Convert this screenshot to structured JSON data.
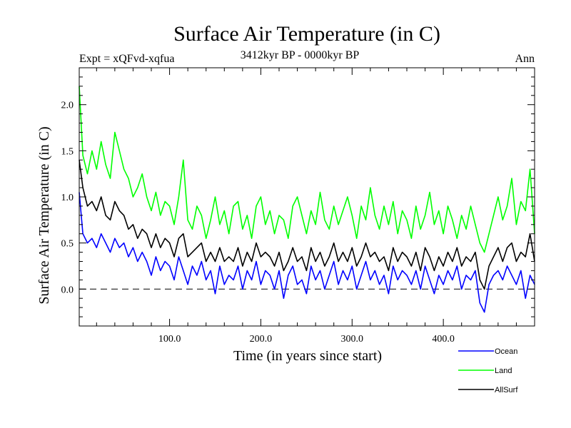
{
  "chart_data": {
    "type": "line",
    "title": "Surface Air Temperature (in C)",
    "subtitle": "3412kyr BP - 0000kyr BP",
    "experiment_label": "Expt = xQFvd-xqfua",
    "season_label": "Ann",
    "xlabel": "Time (in years since start)",
    "ylabel": "Surface Air Temperature (in C)",
    "xlim": [
      1,
      500
    ],
    "ylim": [
      -0.4,
      2.4
    ],
    "x_ticks": [
      100,
      200,
      300,
      400
    ],
    "x_tick_labels": [
      "100.0",
      "200.0",
      "300.0",
      "400.0"
    ],
    "y_ticks": [
      0.0,
      0.5,
      1.0,
      1.5,
      2.0
    ],
    "y_tick_labels": [
      "0.0",
      "0.5",
      "1.0",
      "1.5",
      "2.0"
    ],
    "zero_line": true,
    "grid": false,
    "legend_position": "bottom-right",
    "x": [
      1,
      5,
      10,
      15,
      20,
      25,
      30,
      35,
      40,
      45,
      50,
      55,
      60,
      65,
      70,
      75,
      80,
      85,
      90,
      95,
      100,
      105,
      110,
      115,
      120,
      125,
      130,
      135,
      140,
      145,
      150,
      155,
      160,
      165,
      170,
      175,
      180,
      185,
      190,
      195,
      200,
      205,
      210,
      215,
      220,
      225,
      230,
      235,
      240,
      245,
      250,
      255,
      260,
      265,
      270,
      275,
      280,
      285,
      290,
      295,
      300,
      305,
      310,
      315,
      320,
      325,
      330,
      335,
      340,
      345,
      350,
      355,
      360,
      365,
      370,
      375,
      380,
      385,
      390,
      395,
      400,
      405,
      410,
      415,
      420,
      425,
      430,
      435,
      440,
      445,
      450,
      455,
      460,
      465,
      470,
      475,
      480,
      485,
      490,
      495,
      500
    ],
    "series": [
      {
        "name": "Ocean",
        "color": "#0000ff",
        "values": [
          1.05,
          0.6,
          0.5,
          0.55,
          0.45,
          0.6,
          0.5,
          0.4,
          0.55,
          0.45,
          0.5,
          0.35,
          0.45,
          0.3,
          0.4,
          0.3,
          0.15,
          0.35,
          0.2,
          0.3,
          0.25,
          0.1,
          0.35,
          0.2,
          0.05,
          0.25,
          0.15,
          0.3,
          0.1,
          0.2,
          -0.05,
          0.25,
          0.05,
          0.15,
          0.1,
          0.25,
          0.0,
          0.2,
          0.1,
          0.3,
          0.05,
          0.2,
          0.15,
          0.0,
          0.2,
          -0.1,
          0.15,
          0.25,
          0.05,
          0.1,
          -0.05,
          0.25,
          0.1,
          0.2,
          0.0,
          0.15,
          0.3,
          0.05,
          0.2,
          0.1,
          0.25,
          0.0,
          0.15,
          0.3,
          0.1,
          0.2,
          0.05,
          0.15,
          -0.05,
          0.25,
          0.1,
          0.2,
          0.15,
          0.05,
          0.2,
          0.0,
          0.25,
          0.1,
          -0.05,
          0.15,
          0.05,
          0.2,
          0.1,
          0.25,
          0.0,
          0.15,
          0.1,
          0.2,
          -0.15,
          -0.25,
          0.05,
          0.15,
          0.2,
          0.1,
          0.25,
          0.15,
          0.05,
          0.2,
          -0.1,
          0.15,
          0.05
        ]
      },
      {
        "name": "Land",
        "color": "#00ff00",
        "values": [
          2.2,
          1.45,
          1.25,
          1.5,
          1.3,
          1.6,
          1.35,
          1.2,
          1.7,
          1.5,
          1.3,
          1.2,
          1.0,
          1.1,
          1.25,
          1.0,
          0.85,
          1.05,
          0.8,
          0.95,
          0.9,
          0.7,
          1.0,
          1.4,
          0.75,
          0.65,
          0.9,
          0.8,
          0.55,
          0.75,
          1.0,
          0.7,
          0.85,
          0.6,
          0.9,
          0.95,
          0.65,
          0.8,
          0.55,
          0.9,
          1.0,
          0.7,
          0.85,
          0.6,
          0.8,
          0.75,
          0.55,
          0.9,
          1.0,
          0.8,
          0.6,
          0.85,
          0.7,
          1.05,
          0.75,
          0.65,
          0.9,
          0.7,
          0.85,
          1.0,
          0.8,
          0.55,
          0.9,
          0.75,
          1.1,
          0.8,
          0.65,
          0.9,
          0.7,
          0.95,
          0.6,
          0.85,
          0.75,
          0.55,
          0.9,
          0.65,
          0.8,
          1.05,
          0.7,
          0.85,
          0.6,
          0.9,
          0.75,
          0.55,
          0.8,
          0.65,
          0.9,
          0.7,
          0.5,
          0.4,
          0.6,
          0.8,
          1.0,
          0.75,
          0.9,
          1.2,
          0.7,
          0.95,
          0.85,
          1.3,
          0.6
        ]
      },
      {
        "name": "AllSurf",
        "color": "#000000",
        "values": [
          1.4,
          1.1,
          0.9,
          0.95,
          0.85,
          1.0,
          0.8,
          0.75,
          0.95,
          0.85,
          0.8,
          0.65,
          0.7,
          0.55,
          0.65,
          0.6,
          0.45,
          0.6,
          0.45,
          0.55,
          0.5,
          0.35,
          0.55,
          0.6,
          0.35,
          0.4,
          0.45,
          0.5,
          0.3,
          0.4,
          0.3,
          0.45,
          0.3,
          0.35,
          0.3,
          0.45,
          0.25,
          0.4,
          0.3,
          0.5,
          0.35,
          0.4,
          0.35,
          0.25,
          0.4,
          0.2,
          0.3,
          0.45,
          0.3,
          0.35,
          0.2,
          0.45,
          0.3,
          0.4,
          0.25,
          0.35,
          0.5,
          0.3,
          0.4,
          0.3,
          0.45,
          0.25,
          0.35,
          0.5,
          0.35,
          0.4,
          0.3,
          0.35,
          0.2,
          0.45,
          0.3,
          0.4,
          0.35,
          0.25,
          0.4,
          0.2,
          0.45,
          0.35,
          0.2,
          0.35,
          0.25,
          0.4,
          0.3,
          0.45,
          0.25,
          0.35,
          0.3,
          0.4,
          0.1,
          0.0,
          0.25,
          0.35,
          0.45,
          0.3,
          0.45,
          0.5,
          0.3,
          0.4,
          0.35,
          0.6,
          0.3
        ]
      }
    ]
  }
}
